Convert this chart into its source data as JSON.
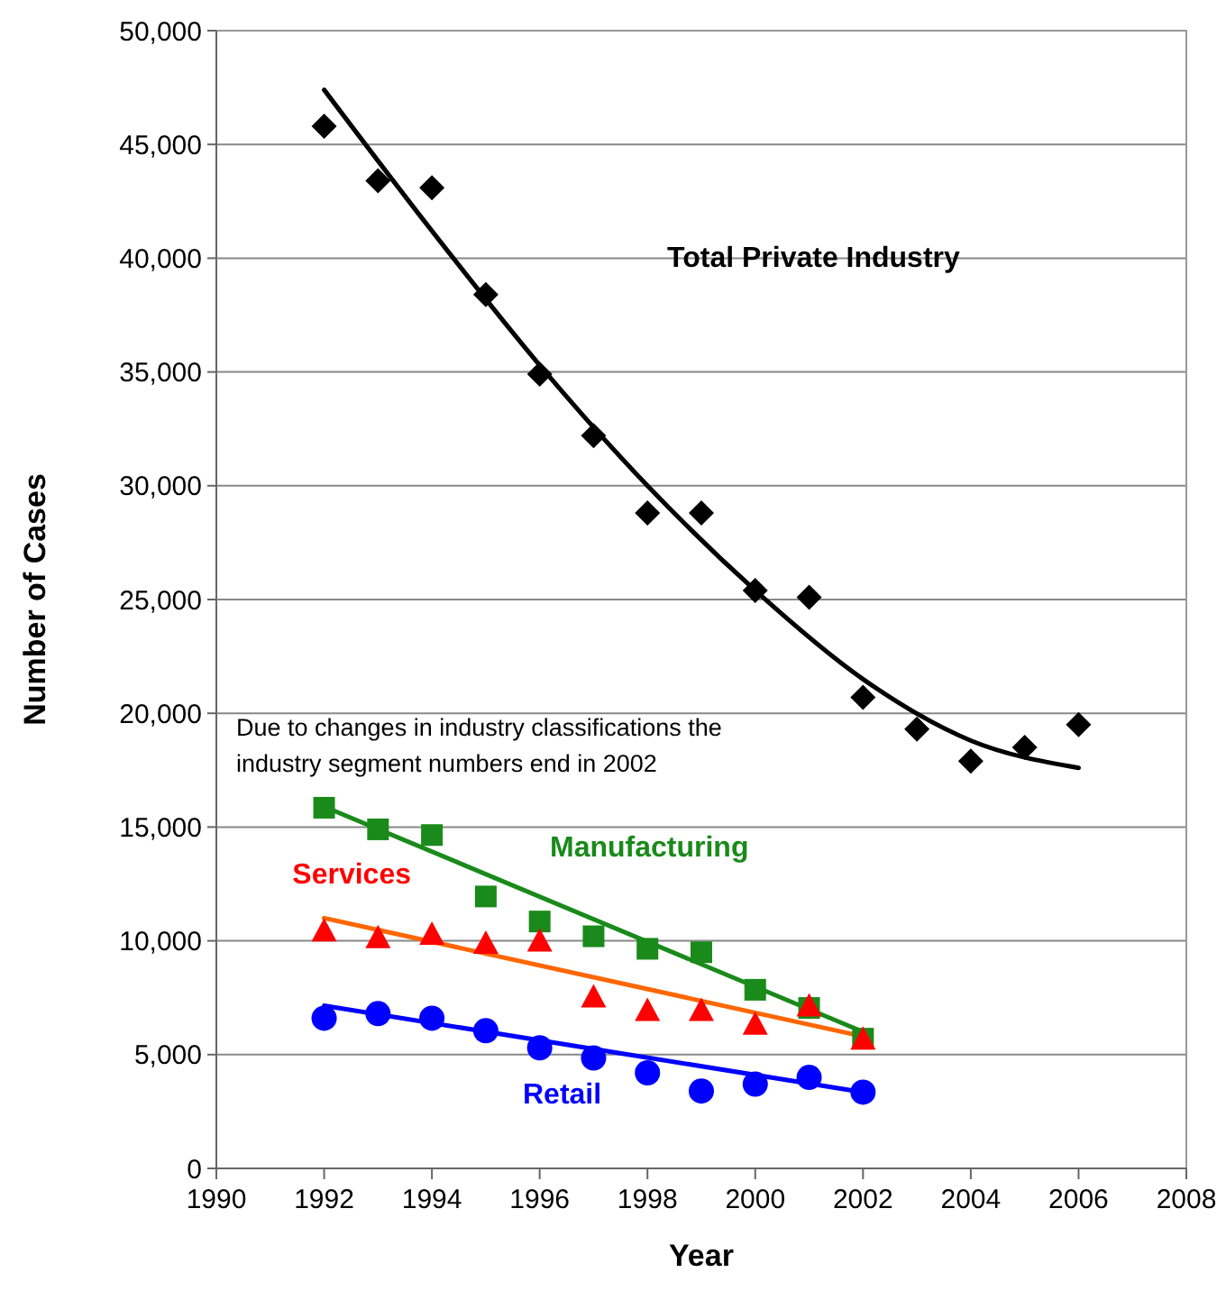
{
  "chart_data": {
    "type": "scatter",
    "xlabel": "Year",
    "ylabel": "Number of Cases",
    "xlim": [
      1990,
      2008
    ],
    "xticks": [
      1990,
      1992,
      1994,
      1996,
      1998,
      2000,
      2002,
      2004,
      2006,
      2008
    ],
    "ylim": [
      0,
      50000
    ],
    "yticks": [
      {
        "value": 0,
        "label": "0"
      },
      {
        "value": 5000,
        "label": "5,000"
      },
      {
        "value": 10000,
        "label": "10,000"
      },
      {
        "value": 15000,
        "label": "15,000"
      },
      {
        "value": 20000,
        "label": "20,000"
      },
      {
        "value": 25000,
        "label": "25,000"
      },
      {
        "value": 30000,
        "label": "30,000"
      },
      {
        "value": 35000,
        "label": "35,000"
      },
      {
        "value": 40000,
        "label": "40,000"
      },
      {
        "value": 45000,
        "label": "45,000"
      },
      {
        "value": 50000,
        "label": "50,000"
      }
    ],
    "grid": "y",
    "annotations": [
      "Due to changes in industry classifications the industry segment numbers end in 2002"
    ],
    "series": [
      {
        "name": "Total Private Industry",
        "marker": "diamond",
        "color": "#000000",
        "x": [
          1992,
          1993,
          1994,
          1995,
          1996,
          1997,
          1998,
          1999,
          2000,
          2001,
          2002,
          2003,
          2004,
          2005,
          2006
        ],
        "values": [
          45800,
          43400,
          43100,
          38400,
          34900,
          32200,
          28800,
          28800,
          25400,
          25100,
          20700,
          19300,
          17900,
          18500,
          19500
        ]
      },
      {
        "type": "line",
        "color": "#000000",
        "x": [
          1992,
          1994,
          1996,
          1998,
          2000,
          2002,
          2004,
          2006
        ],
        "values": [
          47400,
          41200,
          35300,
          30000,
          25400,
          21500,
          18800,
          17600
        ]
      },
      {
        "name": "Manufacturing",
        "marker": "square",
        "color": "#1a8a1a",
        "x": [
          1992,
          1993,
          1994,
          1995,
          1996,
          1997,
          1998,
          1999,
          2000,
          2001,
          2002
        ],
        "values": [
          15850,
          14900,
          14650,
          11950,
          10850,
          10200,
          9650,
          9500,
          7850,
          7050,
          5700
        ]
      },
      {
        "type": "line",
        "color": "#1a8a1a",
        "x": [
          1992,
          2002
        ],
        "values": [
          15900,
          6000
        ]
      },
      {
        "name": "Services",
        "marker": "triangle",
        "color": "#ff0000",
        "x": [
          1992,
          1993,
          1994,
          1995,
          1996,
          1997,
          1998,
          1999,
          2000,
          2001,
          2002
        ],
        "values": [
          10450,
          10150,
          10300,
          9900,
          10000,
          7550,
          6950,
          6950,
          6350,
          7150,
          5700
        ]
      },
      {
        "type": "line",
        "color": "#ff6600",
        "x": [
          1992,
          2002
        ],
        "values": [
          11000,
          5800
        ]
      },
      {
        "name": "Retail",
        "marker": "circle",
        "color": "#0000ff",
        "x": [
          1992,
          1993,
          1994,
          1995,
          1996,
          1997,
          1998,
          1999,
          2000,
          2001,
          2002
        ],
        "values": [
          6600,
          6800,
          6600,
          6050,
          5300,
          4850,
          4200,
          3400,
          3700,
          4000,
          3350
        ]
      },
      {
        "type": "line",
        "color": "#0000ff",
        "x": [
          1992,
          2002
        ],
        "values": [
          7150,
          3350
        ]
      }
    ]
  }
}
